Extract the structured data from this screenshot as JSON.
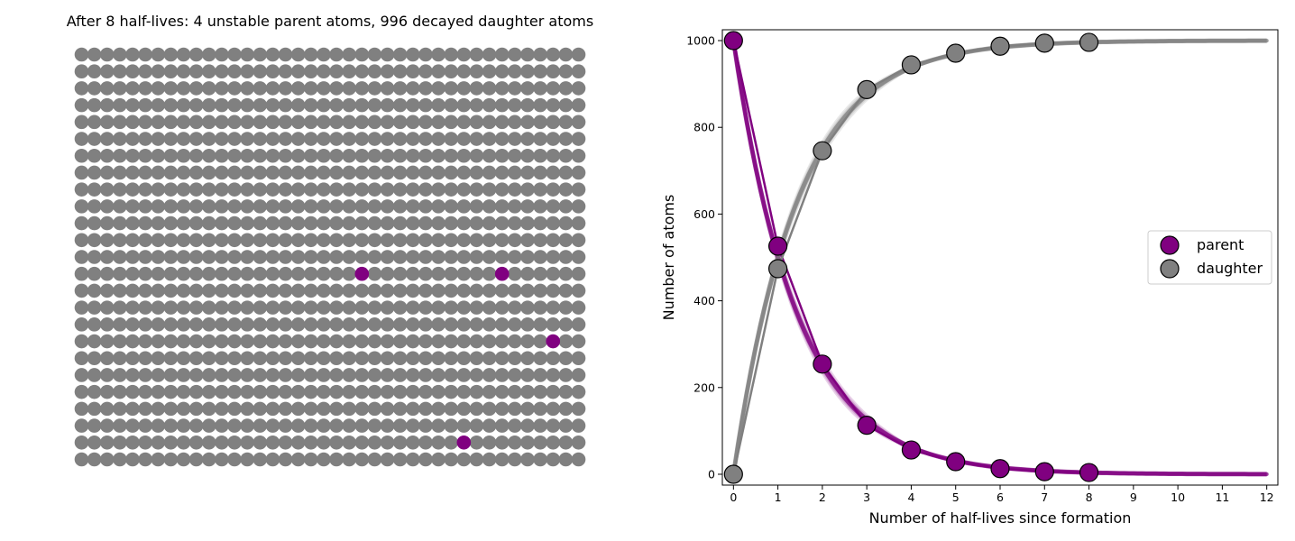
{
  "colors": {
    "parent": "#800080",
    "daughter": "#808080",
    "background": "#ffffff"
  },
  "left_panel": {
    "title": "After 8 half-lives: 4 unstable parent atoms, 996 decayed daughter atoms",
    "grid_rows": 25,
    "grid_cols": 40,
    "parent_atoms": [
      {
        "row": 13,
        "col": 22
      },
      {
        "row": 13,
        "col": 33
      },
      {
        "row": 17,
        "col": 37
      },
      {
        "row": 23,
        "col": 30
      }
    ]
  },
  "chart_data": {
    "type": "line",
    "xlabel": "Number of half-lives since formation",
    "ylabel": "Number of atoms",
    "xlim": [
      -0.25,
      12.25
    ],
    "ylim": [
      -25,
      1025
    ],
    "xticks": [
      0,
      1,
      2,
      3,
      4,
      5,
      6,
      7,
      8,
      9,
      10,
      11,
      12
    ],
    "yticks": [
      0,
      200,
      400,
      600,
      800,
      1000
    ],
    "grid": false,
    "legend_position": "center right",
    "series": [
      {
        "name": "parent",
        "color": "#800080",
        "x": [
          0,
          1,
          2,
          3,
          4,
          5,
          6,
          7,
          8
        ],
        "values": [
          1000,
          526,
          254,
          113,
          56,
          29,
          13,
          6,
          4
        ]
      },
      {
        "name": "daughter",
        "color": "#808080",
        "x": [
          0,
          1,
          2,
          3,
          4,
          5,
          6,
          7,
          8
        ],
        "values": [
          0,
          474,
          746,
          887,
          944,
          971,
          987,
          994,
          996
        ]
      }
    ],
    "expected_curves": {
      "x_range": [
        0,
        12
      ],
      "parent_initial": 1000,
      "total": 1000
    }
  }
}
